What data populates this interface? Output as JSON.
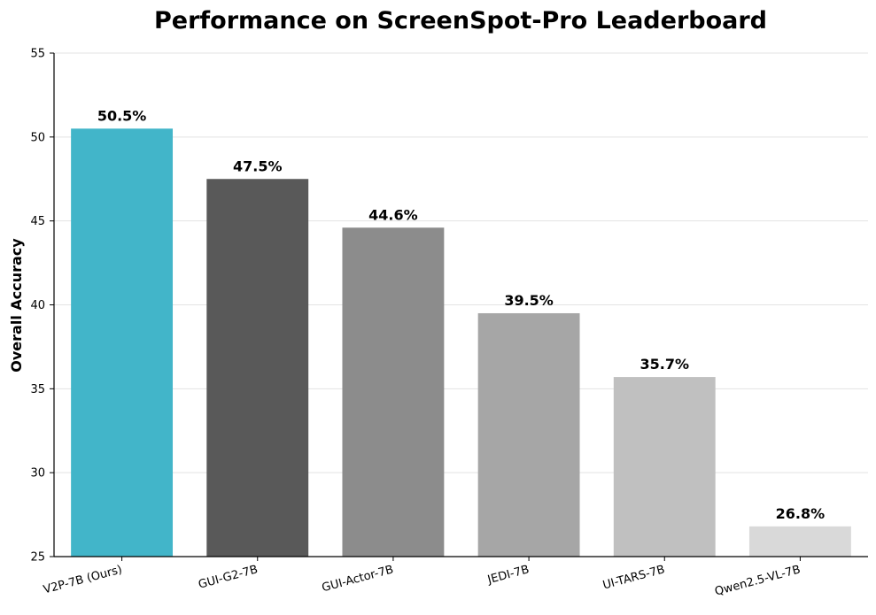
{
  "chart_data": {
    "type": "bar",
    "title": "Performance on ScreenSpot-Pro Leaderboard",
    "xlabel": "",
    "ylabel": "Overall Accuracy",
    "ylim": [
      25,
      55
    ],
    "yticks": [
      25,
      30,
      35,
      40,
      45,
      50,
      55
    ],
    "grid": "y",
    "categories": [
      "V2P-7B (Ours)",
      "GUI-G2-7B",
      "GUI-Actor-7B",
      "JEDI-7B",
      "UI-TARS-7B",
      "Qwen2.5-VL-7B"
    ],
    "values": [
      50.5,
      47.5,
      44.6,
      39.5,
      35.7,
      26.8
    ],
    "data_labels": [
      "50.5%",
      "47.5%",
      "44.6%",
      "39.5%",
      "35.7%",
      "26.8%"
    ],
    "colors": [
      "#42b5c9",
      "#595959",
      "#8c8c8c",
      "#a6a6a6",
      "#c0c0c0",
      "#d9d9d9"
    ]
  }
}
